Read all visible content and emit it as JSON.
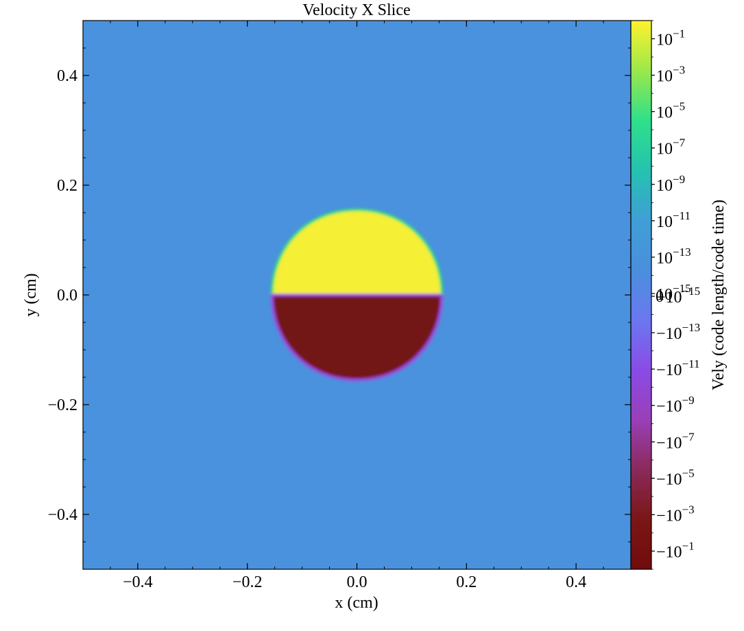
{
  "chart_data": {
    "type": "heatmap",
    "title": "Velocity X Slice",
    "xlabel": "x  (cm)",
    "ylabel": "y  (cm)",
    "colorbar_label": "Vely  (code length/code time)",
    "xlim": [
      -0.5,
      0.5
    ],
    "ylim": [
      -0.5,
      0.5
    ],
    "x_ticks": [
      {
        "value": -0.4,
        "label": "−0.4"
      },
      {
        "value": -0.2,
        "label": "−0.2"
      },
      {
        "value": 0.0,
        "label": "0.0"
      },
      {
        "value": 0.2,
        "label": "0.2"
      },
      {
        "value": 0.4,
        "label": "0.4"
      }
    ],
    "y_ticks": [
      {
        "value": 0.4,
        "label": "0.4"
      },
      {
        "value": 0.2,
        "label": "0.2"
      },
      {
        "value": 0.0,
        "label": "0.0"
      },
      {
        "value": -0.2,
        "label": "−0.2"
      },
      {
        "value": -0.4,
        "label": "−0.4"
      }
    ],
    "colorbar": {
      "scale": "symlog",
      "linthresh_exponent": -15,
      "max_exponent": 0,
      "ticks": [
        {
          "sign": "",
          "exp": "−1",
          "value": 0.1
        },
        {
          "sign": "",
          "exp": "−3",
          "value": 0.001
        },
        {
          "sign": "",
          "exp": "−5",
          "value": 1e-05
        },
        {
          "sign": "",
          "exp": "−7",
          "value": 1e-07
        },
        {
          "sign": "",
          "exp": "−9",
          "value": 1e-09
        },
        {
          "sign": "",
          "exp": "−11",
          "value": 1e-11
        },
        {
          "sign": "",
          "exp": "−13",
          "value": 1e-13
        },
        {
          "sign": "",
          "exp": "−15",
          "value": 1e-15
        },
        {
          "sign": "−",
          "exp": "−15",
          "value": -1e-15
        },
        {
          "sign": "−",
          "exp": "−13",
          "value": -1e-13
        },
        {
          "sign": "−",
          "exp": "−11",
          "value": -1e-11
        },
        {
          "sign": "−",
          "exp": "−9",
          "value": -1e-09
        },
        {
          "sign": "−",
          "exp": "−7",
          "value": -1e-07
        },
        {
          "sign": "−",
          "exp": "−5",
          "value": -1e-05
        },
        {
          "sign": "−",
          "exp": "−3",
          "value": -0.001
        },
        {
          "sign": "−",
          "exp": "−1",
          "value": -0.1
        }
      ],
      "zero_label": "0",
      "colors": [
        "#fff22d",
        "#9be84a",
        "#2fe08a",
        "#25c2b0",
        "#3f9fd5",
        "#4a8fdd",
        "#6a78f0",
        "#8a4be6",
        "#9a3fb8",
        "#8a2a5a",
        "#7a1616",
        "#720c0c"
      ]
    },
    "background_value": 0,
    "field_colors": {
      "background": "#4a92dd",
      "positive": "#f5ef36",
      "negative": "#731416",
      "pos_edge": "#2ee07a",
      "neg_edge": "#a050e0"
    },
    "feature": {
      "center": [
        0.0,
        0.0
      ],
      "radius": 0.155,
      "upper": "positive",
      "lower": "negative"
    }
  }
}
